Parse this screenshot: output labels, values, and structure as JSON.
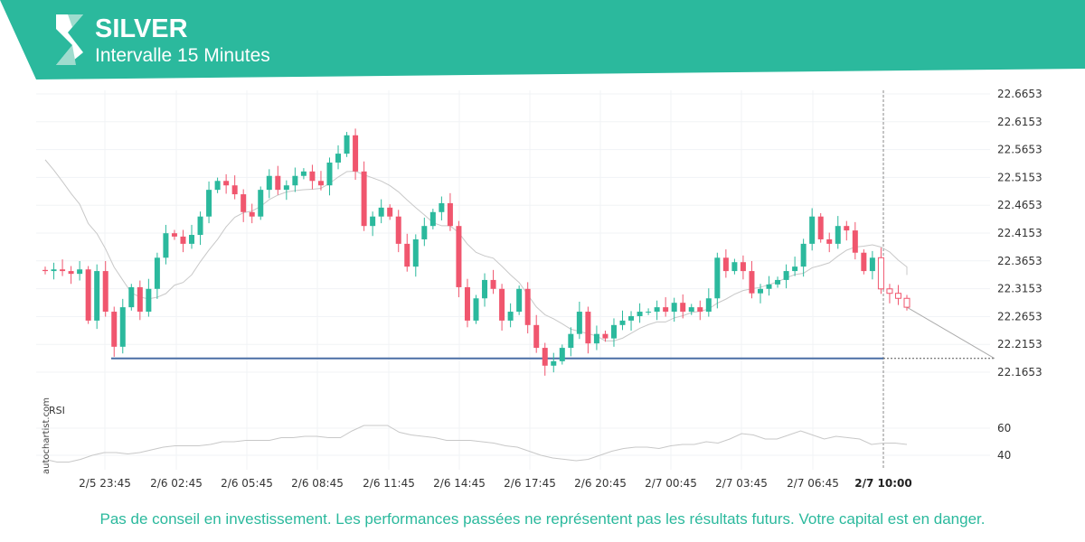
{
  "header": {
    "title": "SILVER",
    "subtitle": "Intervalle 15 Minutes"
  },
  "disclaimer": "Pas de conseil en investissement. Les performances passées ne représentent pas les résultats futurs. Votre capital est en danger.",
  "watermark": "autochartist.com",
  "colors": {
    "brand": "#2bb99d",
    "up": "#2bb99d",
    "down": "#f0566e",
    "support": "#4a6fa5"
  },
  "chart_data": {
    "type": "candlestick",
    "title": "SILVER",
    "ylim": [
      22.14,
      22.68
    ],
    "y_ticks": [
      "22.6653",
      "22.6153",
      "22.5653",
      "22.5153",
      "22.4653",
      "22.4153",
      "22.3653",
      "22.3153",
      "22.2653",
      "22.2153",
      "22.1653"
    ],
    "x_ticks": [
      "2/5 23:45",
      "2/6 02:45",
      "2/6 05:45",
      "2/6 08:45",
      "2/6 11:45",
      "2/6 14:45",
      "2/6 17:45",
      "2/6 20:45",
      "2/7 00:45",
      "2/7 03:45",
      "2/7 06:45"
    ],
    "current_time_label": "2/7 10:00",
    "support_level": 22.19,
    "forecast_target": 22.19,
    "closes": [
      22.347,
      22.35,
      22.347,
      22.342,
      22.35,
      22.258,
      22.347,
      22.274,
      22.211,
      22.282,
      22.318,
      22.274,
      22.315,
      22.371,
      22.415,
      22.409,
      22.396,
      22.412,
      22.445,
      22.493,
      22.509,
      22.501,
      22.485,
      22.453,
      22.445,
      22.493,
      22.518,
      22.493,
      22.501,
      22.518,
      22.526,
      22.509,
      22.501,
      22.542,
      22.558,
      22.591,
      22.526,
      22.428,
      22.445,
      22.461,
      22.445,
      22.396,
      22.355,
      22.404,
      22.428,
      22.453,
      22.469,
      22.428,
      22.318,
      22.258,
      22.298,
      22.331,
      22.315,
      22.258,
      22.274,
      22.315,
      22.25,
      22.209,
      22.177,
      22.185,
      22.209,
      22.234,
      22.274,
      22.217,
      22.234,
      22.226,
      22.25,
      22.258,
      22.266,
      22.274,
      22.274,
      22.282,
      22.274,
      22.29,
      22.274,
      22.282,
      22.274,
      22.298,
      22.371,
      22.347,
      22.363,
      22.347,
      22.307,
      22.315,
      22.323,
      22.331,
      22.347,
      22.355,
      22.396,
      22.445,
      22.404,
      22.396,
      22.428,
      22.42,
      22.38,
      22.347,
      22.371,
      22.315,
      22.307,
      22.298,
      22.282
    ],
    "rsi": {
      "label": "RSI",
      "ticks": [
        "60",
        "40"
      ],
      "values": [
        37,
        35,
        35,
        37,
        40,
        42,
        42,
        41,
        42,
        44,
        46,
        47,
        47,
        47,
        48,
        50,
        50,
        51,
        51,
        51,
        53,
        53,
        54,
        54,
        53,
        53,
        58,
        62,
        62,
        62,
        57,
        55,
        54,
        53,
        51,
        51,
        51,
        50,
        49,
        47,
        46,
        43,
        40,
        38,
        37,
        36,
        37,
        40,
        43,
        45,
        46,
        46,
        45,
        47,
        48,
        48,
        50,
        49,
        52,
        56,
        55,
        52,
        52,
        55,
        58,
        55,
        52,
        54,
        53,
        52,
        48,
        49,
        49,
        48
      ]
    }
  }
}
